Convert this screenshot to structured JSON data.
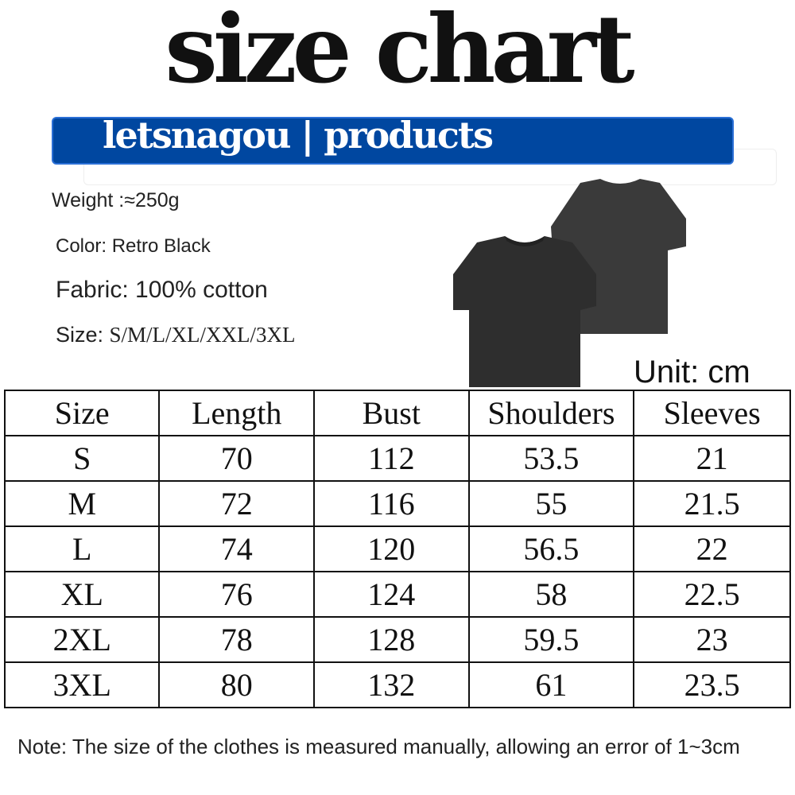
{
  "title": "size chart",
  "banner": "letsnagou | products",
  "specs": {
    "weight": "Weight :≈250g",
    "color": "Color: Retro Black",
    "fabric": "Fabric: 100% cotton",
    "size_label": "Size: ",
    "size_value": "S/M/L/XL/XXL/3XL"
  },
  "product_color": "#2e2e2e",
  "unit": "Unit: cm",
  "table": {
    "headers": [
      "Size",
      "Length",
      "Bust",
      "Shoulders",
      "Sleeves"
    ],
    "rows": [
      [
        "S",
        "70",
        "112",
        "53.5",
        "21"
      ],
      [
        "M",
        "72",
        "116",
        "55",
        "21.5"
      ],
      [
        "L",
        "74",
        "120",
        "56.5",
        "22"
      ],
      [
        "XL",
        "76",
        "124",
        "58",
        "22.5"
      ],
      [
        "2XL",
        "78",
        "128",
        "59.5",
        "23"
      ],
      [
        "3XL",
        "80",
        "132",
        "61",
        "23.5"
      ]
    ]
  },
  "note": "Note: The size of the clothes is measured manually, allowing an error of 1~3cm"
}
